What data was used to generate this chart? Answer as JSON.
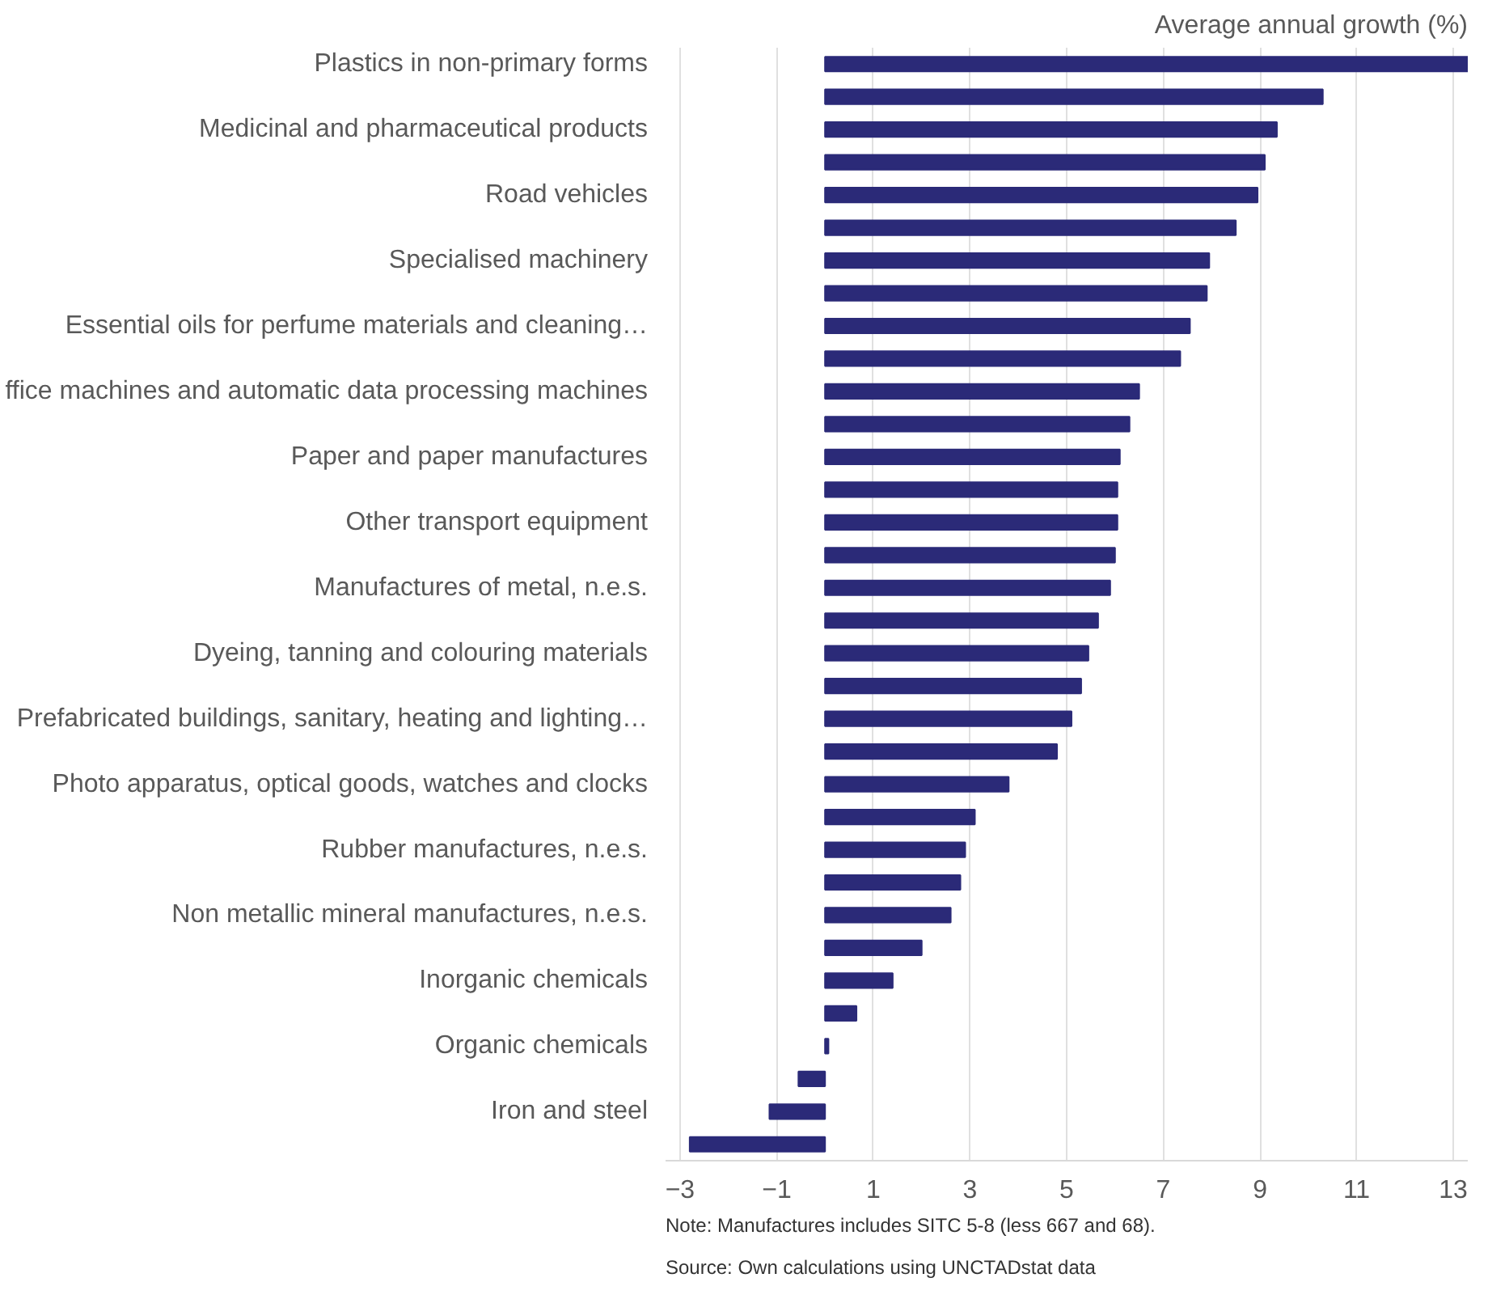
{
  "chart_data": {
    "type": "bar",
    "orientation": "horizontal",
    "title": "Average annual growth (%)",
    "categories": [
      "Plastics in non-primary forms",
      null,
      "Medicinal and pharmaceutical products",
      null,
      "Road vehicles",
      null,
      "Specialised machinery",
      null,
      "Essential oils for perfume materials and cleaning…",
      null,
      "ffice machines and automatic data processing machines",
      null,
      "Paper and paper manufactures",
      null,
      "Other transport equipment",
      null,
      "Manufactures of metal, n.e.s.",
      null,
      "Dyeing, tanning and colouring materials",
      null,
      "Prefabricated buildings, sanitary, heating and lighting…",
      null,
      "Photo apparatus, optical goods, watches and clocks",
      null,
      "Rubber manufactures, n.e.s.",
      null,
      "Non metallic mineral manufactures, n.e.s.",
      null,
      "Inorganic chemicals",
      null,
      "Organic chemicals",
      null,
      "Iron and steel",
      null
    ],
    "values": [
      13.3,
      10.3,
      9.35,
      9.1,
      8.95,
      8.5,
      7.95,
      7.9,
      7.55,
      7.35,
      6.5,
      6.3,
      6.1,
      6.05,
      6.05,
      6.0,
      5.9,
      5.65,
      5.45,
      5.3,
      5.1,
      4.8,
      3.8,
      3.1,
      2.9,
      2.8,
      2.6,
      2.0,
      1.4,
      0.65,
      0.07,
      -0.55,
      -1.15,
      -2.8
    ],
    "color": "#2b2a78",
    "xlim": [
      -3.3,
      13.3
    ],
    "xticks": [
      -3,
      -1,
      1,
      3,
      5,
      7,
      9,
      11,
      13
    ],
    "grid": "x",
    "annotations": [
      "Note: Manufactures includes SITC 5-8 (less 667 and 68).",
      "Source: Own calculations using UNCTADstat data"
    ]
  }
}
